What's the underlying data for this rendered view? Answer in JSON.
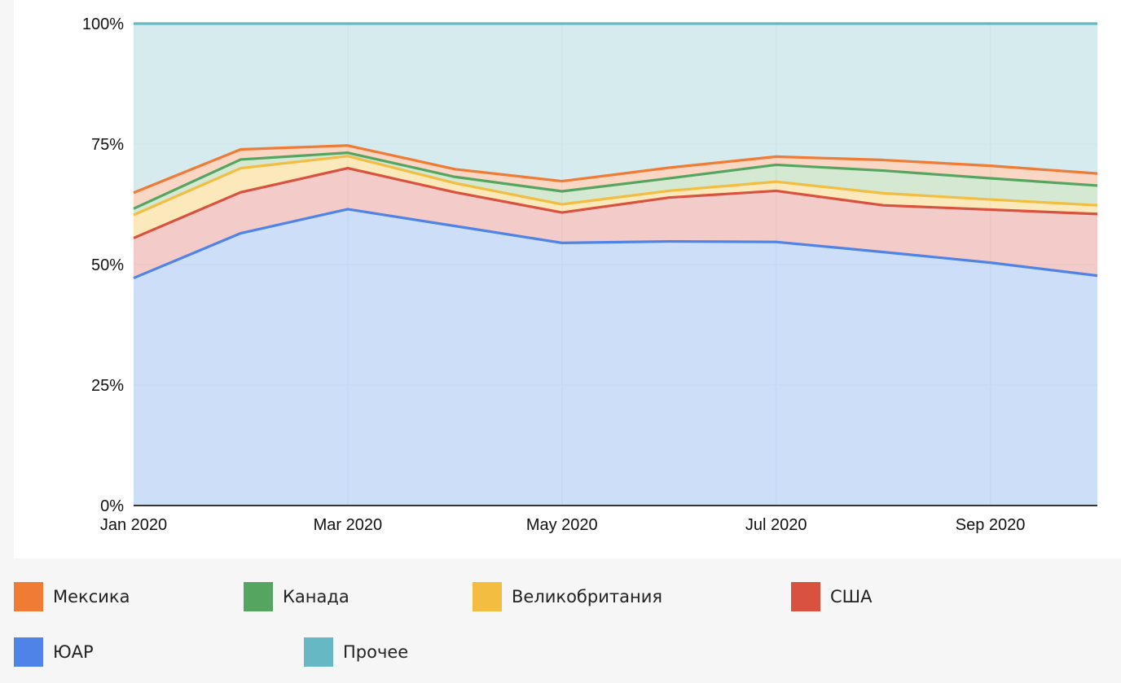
{
  "chart_data": {
    "type": "area",
    "stacked": "percent",
    "categories": [
      "Jan 2020",
      "Feb 2020",
      "Mar 2020",
      "Apr 2020",
      "May 2020",
      "Jun 2020",
      "Jul 2020",
      "Aug 2020",
      "Sep 2020",
      "Oct 2020"
    ],
    "x_tick_labels": [
      "Jan 2020",
      "Mar 2020",
      "May 2020",
      "Jul 2020",
      "Sep 2020"
    ],
    "y_tick_labels": [
      "0%",
      "25%",
      "50%",
      "75%",
      "100%"
    ],
    "ylim": [
      0,
      100
    ],
    "grid": true,
    "legend_position": "bottom",
    "series": [
      {
        "name": "ЮАР",
        "color": "#4f83e8",
        "fill": "#c8daf7",
        "values": [
          47.2,
          56.5,
          61.5,
          58.0,
          54.5,
          54.8,
          54.7,
          52.6,
          50.4,
          47.7
        ]
      },
      {
        "name": "США",
        "color": "#d9513f",
        "fill": "#f2c6c3",
        "values": [
          8.3,
          8.5,
          8.5,
          7.0,
          6.3,
          9.1,
          10.6,
          9.7,
          11.0,
          12.8
        ]
      },
      {
        "name": "Великобритания",
        "color": "#f3bd42",
        "fill": "#fbe7b5",
        "values": [
          4.8,
          5.0,
          2.5,
          1.9,
          1.7,
          1.4,
          1.9,
          2.5,
          2.1,
          1.8
        ]
      },
      {
        "name": "Канада",
        "color": "#55a561",
        "fill": "#cfe6cd",
        "values": [
          1.3,
          1.8,
          0.7,
          1.3,
          2.7,
          2.6,
          3.5,
          4.7,
          4.4,
          4.1
        ]
      },
      {
        "name": "Мексика",
        "color": "#ef7b35",
        "fill": "#fad2bf",
        "values": [
          3.3,
          2.1,
          1.5,
          1.6,
          2.1,
          2.2,
          1.7,
          2.2,
          2.6,
          2.5
        ]
      },
      {
        "name": "Прочее",
        "color": "#66b8c4",
        "fill": "#d1e9ec",
        "values": [
          35.1,
          26.1,
          25.3,
          30.2,
          32.7,
          29.9,
          27.6,
          28.3,
          29.5,
          31.1
        ]
      }
    ]
  },
  "legend": {
    "items": [
      {
        "key": "mexico",
        "label": "Мексика",
        "color": "#ef7b35"
      },
      {
        "key": "canada",
        "label": "Канада",
        "color": "#55a561"
      },
      {
        "key": "uk",
        "label": "Великобритания",
        "color": "#f3bd42"
      },
      {
        "key": "usa",
        "label": "США",
        "color": "#d9513f"
      },
      {
        "key": "south-africa",
        "label": "ЮАР",
        "color": "#4f83e8"
      },
      {
        "key": "other",
        "label": "Прочее",
        "color": "#66b8c4"
      }
    ]
  }
}
